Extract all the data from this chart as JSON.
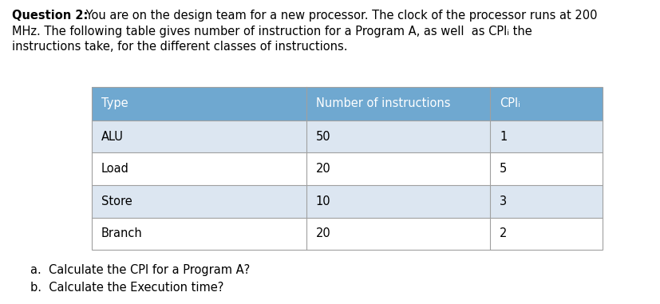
{
  "title_bold": "Question 2:",
  "title_normal": " You are on the design team for a new processor. The clock of the processor runs at 200",
  "title_line2": "MHz. The following table gives number of instruction for a Program A, as well  as CPIᵢ the",
  "title_line3": "instructions take, for the different classes of instructions.",
  "table_header": [
    "Type",
    "Number of instructions",
    "CPIᵢ"
  ],
  "table_rows": [
    [
      "ALU",
      "50",
      "1"
    ],
    [
      "Load",
      "20",
      "5"
    ],
    [
      "Store",
      "10",
      "3"
    ],
    [
      "Branch",
      "20",
      "2"
    ]
  ],
  "header_bg": "#6fa8d0",
  "row_bg_odd": "#dce6f1",
  "row_bg_even": "#ffffff",
  "header_text_color": "#ffffff",
  "row_text_color": "#000000",
  "footer_lines": [
    "a.  Calculate the CPI for a Program A?",
    "b.  Calculate the Execution time?"
  ],
  "bg_color": "#ffffff",
  "font_size_title": 10.5,
  "font_size_table": 10.5,
  "font_size_footer": 10.5,
  "fig_width": 8.28,
  "fig_height": 3.81,
  "dpi": 100
}
